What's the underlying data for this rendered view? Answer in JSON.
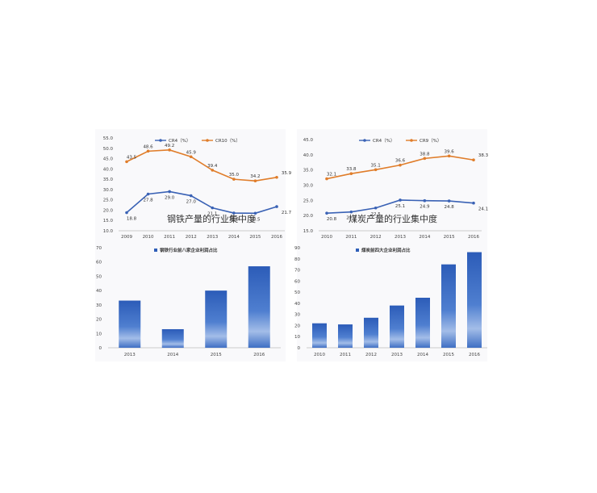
{
  "chart_data": [
    {
      "type": "line",
      "title": "钢铁产量的行业集中度",
      "categories": [
        "2009",
        "2010",
        "2011",
        "2012",
        "2013",
        "2014",
        "2015",
        "2016"
      ],
      "series": [
        {
          "name": "CR4（%）",
          "color": "#3a62b5",
          "values": [
            18.8,
            27.8,
            29.0,
            27.0,
            21.1,
            18.6,
            18.5,
            21.7
          ],
          "labels": [
            "18.8",
            "27.8",
            "29.0",
            "27.0",
            "21.1",
            "18.6",
            "18.5",
            "21.7"
          ]
        },
        {
          "name": "CR10（%）",
          "color": "#e07d2a",
          "values": [
            43.5,
            48.6,
            49.2,
            45.9,
            39.4,
            35.0,
            34.2,
            35.9
          ],
          "labels": [
            "43.5",
            "48.6",
            "49.2",
            "45.9",
            "39.4",
            "35.0",
            "34.2",
            "35.9"
          ]
        }
      ],
      "ylim": [
        10,
        55
      ],
      "yticks": [
        "10.0",
        "15.0",
        "20.0",
        "25.0",
        "30.0",
        "35.0",
        "40.0",
        "45.0",
        "50.0",
        "55.0"
      ],
      "legend": "top-center",
      "grid": false
    },
    {
      "type": "line",
      "title": "煤炭产量的行业集中度",
      "categories": [
        "2010",
        "2011",
        "2012",
        "2013",
        "2014",
        "2015",
        "2016"
      ],
      "series": [
        {
          "name": "CR4（%）",
          "color": "#3a62b5",
          "values": [
            20.8,
            21.2,
            22.5,
            25.1,
            24.9,
            24.8,
            24.1
          ],
          "labels": [
            "20.8",
            "21.2",
            "22.5",
            "25.1",
            "24.9",
            "24.8",
            "24.1"
          ]
        },
        {
          "name": "CR9（%）",
          "color": "#e07d2a",
          "values": [
            32.1,
            33.8,
            35.1,
            36.6,
            38.8,
            39.6,
            38.3
          ],
          "labels": [
            "32.1",
            "33.8",
            "35.1",
            "36.6",
            "38.8",
            "39.6",
            "38.3"
          ]
        }
      ],
      "ylim": [
        15,
        45
      ],
      "yticks": [
        "15.0",
        "20.0",
        "25.0",
        "30.0",
        "35.0",
        "40.0",
        "45.0"
      ],
      "legend": "top-center",
      "grid": false
    },
    {
      "type": "bar",
      "categories": [
        "2013",
        "2014",
        "2015",
        "2016"
      ],
      "series": [
        {
          "name": "钢铁行业前八家企业利润占比",
          "color": "#2f5fb8",
          "values": [
            33,
            13,
            40,
            57
          ]
        }
      ],
      "ylim": [
        0,
        70
      ],
      "yticks": [
        "0",
        "10",
        "20",
        "30",
        "40",
        "50",
        "60",
        "70"
      ],
      "legend": "top-right",
      "grid": false
    },
    {
      "type": "bar",
      "categories": [
        "2010",
        "2011",
        "2012",
        "2013",
        "2014",
        "2015",
        "2016"
      ],
      "series": [
        {
          "name": "煤炭前四大企业利润占比",
          "color": "#2f5fb8",
          "values": [
            22,
            21,
            27,
            38,
            45,
            75,
            86
          ]
        }
      ],
      "ylim": [
        0,
        90
      ],
      "yticks": [
        "0",
        "10",
        "20",
        "30",
        "40",
        "50",
        "60",
        "70",
        "80",
        "90"
      ],
      "legend": "top-right",
      "grid": false
    }
  ]
}
